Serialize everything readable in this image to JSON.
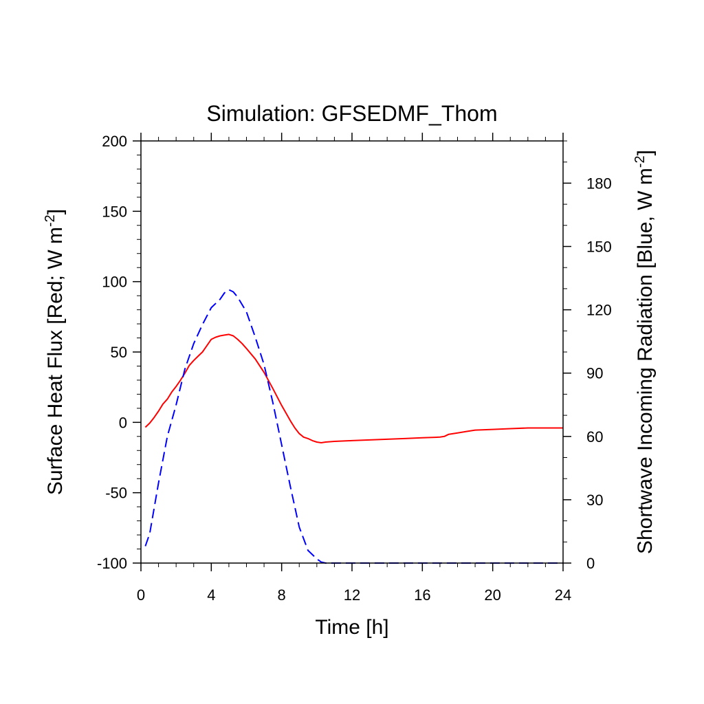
{
  "chart_data": {
    "type": "line",
    "title": "Simulation: GFSEDMF_Thom",
    "xlabel": "Time [h]",
    "ylabel_left": {
      "base": "Surface Heat Flux [Red; W m",
      "sup": "-2",
      "suffix": "]"
    },
    "ylabel_right": {
      "base": "Shortwave Incoming Radiation [Blue, W m",
      "sup": "-2",
      "suffix": "]"
    },
    "xlim": [
      0,
      24
    ],
    "xticks": [
      0,
      4,
      8,
      12,
      16,
      20,
      24
    ],
    "xtick_labels": [
      "0",
      "4",
      "8",
      "12",
      "16",
      "20",
      "24"
    ],
    "ylim_left": [
      -100,
      200
    ],
    "yticks_left": [
      -100,
      -50,
      0,
      50,
      100,
      150,
      200
    ],
    "ytick_labels_left": [
      "-100",
      "-50",
      "0",
      "50",
      "100",
      "150",
      "200"
    ],
    "ylim_right": [
      0,
      200
    ],
    "yticks_right": [
      0,
      30,
      60,
      90,
      120,
      150,
      180
    ],
    "ytick_labels_right": [
      "0",
      "30",
      "60",
      "90",
      "120",
      "150",
      "180"
    ],
    "grid": false,
    "series": [
      {
        "axis": "left",
        "color": "#ff0000",
        "dash": "solid",
        "x": [
          0.25,
          0.5,
          0.75,
          1.0,
          1.25,
          1.5,
          1.75,
          2.0,
          2.25,
          2.5,
          2.75,
          3.0,
          3.25,
          3.5,
          3.75,
          4.0,
          4.25,
          4.5,
          4.75,
          5.0,
          5.25,
          5.5,
          5.75,
          6.0,
          6.5,
          7.0,
          7.5,
          8.0,
          8.5,
          8.75,
          9.0,
          9.25,
          9.5,
          9.75,
          10.0,
          10.25,
          10.5,
          11.0,
          12.0,
          13.0,
          14.0,
          15.0,
          16.0,
          17.0,
          17.25,
          17.5,
          17.75,
          18.0,
          18.5,
          19.0,
          20.0,
          21.0,
          22.0,
          23.0,
          24.0
        ],
        "y": [
          -3.5,
          -0.5,
          3.5,
          8.0,
          13.0,
          16.5,
          21.5,
          25.5,
          30.0,
          35.0,
          40.5,
          44.0,
          47.0,
          50.0,
          54.5,
          59.0,
          60.5,
          61.5,
          62.0,
          62.5,
          61.5,
          59.0,
          56.0,
          52.5,
          45.0,
          35.5,
          24.0,
          12.0,
          1.0,
          -4.0,
          -8.0,
          -10.5,
          -11.5,
          -13.0,
          -14.0,
          -14.5,
          -14.0,
          -13.5,
          -13.0,
          -12.5,
          -12.0,
          -11.5,
          -11.0,
          -10.5,
          -10.0,
          -8.5,
          -8.0,
          -7.5,
          -6.5,
          -5.5,
          -5.0,
          -4.5,
          -4.0,
          -4.0,
          -4.0
        ]
      },
      {
        "axis": "right",
        "color": "#0000ff",
        "dash": "dashed",
        "x": [
          0.25,
          0.5,
          0.75,
          1.0,
          1.5,
          2.0,
          2.5,
          3.0,
          3.5,
          4.0,
          4.5,
          4.75,
          5.0,
          5.25,
          5.5,
          6.0,
          6.5,
          7.0,
          7.5,
          8.0,
          8.5,
          9.0,
          9.5,
          10.0,
          10.25,
          10.5,
          11.0,
          12.0,
          14.0,
          16.0,
          18.0,
          20.0,
          22.0,
          24.0
        ],
        "y": [
          8.0,
          14.0,
          26.0,
          38.0,
          60.0,
          75.0,
          92.0,
          104.0,
          113.0,
          121.0,
          125.0,
          128.0,
          129.5,
          128.5,
          126.0,
          119.0,
          107.0,
          94.0,
          76.0,
          56.0,
          36.0,
          17.0,
          6.0,
          2.0,
          0.5,
          0,
          0,
          0,
          0,
          0,
          0,
          0,
          0,
          0
        ]
      }
    ]
  }
}
